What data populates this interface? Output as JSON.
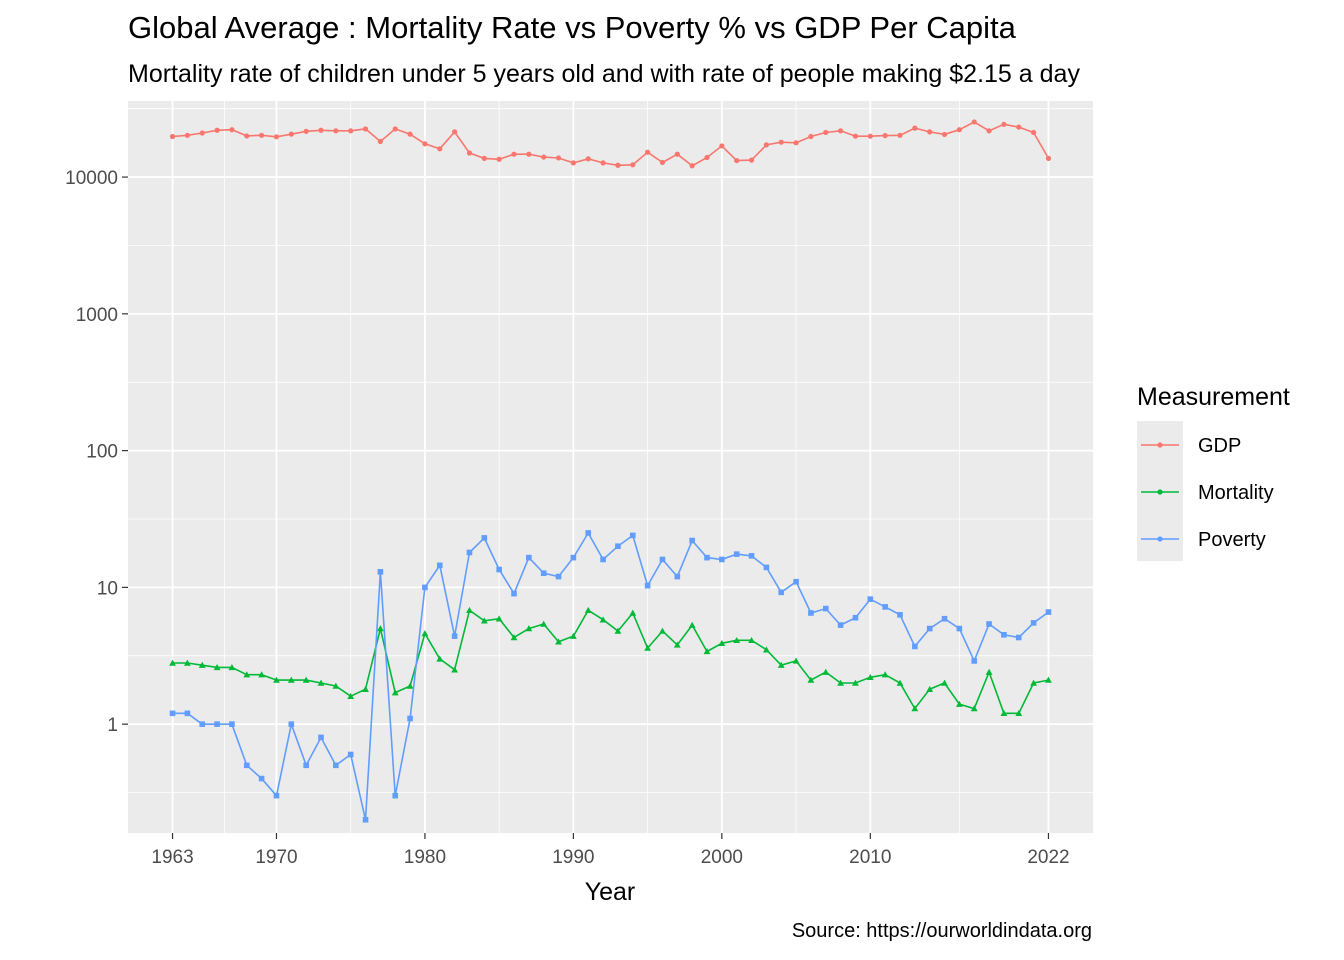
{
  "chart_data": {
    "type": "line",
    "title": "Global Average : Mortality Rate vs Poverty % vs GDP Per Capita",
    "subtitle": "Mortality rate of children under 5 years old and with rate of people making $2.15 a day",
    "caption": "Source: https://ourworldindata.org",
    "xlabel": "Year",
    "ylabel": "",
    "y_scale": "log10",
    "ylim": [
      0.16,
      36000
    ],
    "xlim": [
      1960,
      2025
    ],
    "x_ticks": [
      1963,
      1970,
      1980,
      1990,
      2000,
      2010,
      2022
    ],
    "y_ticks": [
      1,
      10,
      100,
      1000,
      10000
    ],
    "y_tick_labels": [
      "1",
      "10",
      "100",
      "1000",
      "10000"
    ],
    "grid": true,
    "legend": {
      "title": "Measurement",
      "position": "right"
    },
    "x": [
      1963,
      1964,
      1965,
      1966,
      1967,
      1968,
      1969,
      1970,
      1971,
      1972,
      1973,
      1974,
      1975,
      1976,
      1977,
      1978,
      1979,
      1980,
      1981,
      1982,
      1983,
      1984,
      1985,
      1986,
      1987,
      1988,
      1989,
      1990,
      1991,
      1992,
      1993,
      1994,
      1995,
      1996,
      1997,
      1998,
      1999,
      2000,
      2001,
      2002,
      2003,
      2004,
      2005,
      2006,
      2007,
      2008,
      2009,
      2010,
      2011,
      2012,
      2013,
      2014,
      2015,
      2016,
      2017,
      2018,
      2019,
      2020,
      2021,
      2022
    ],
    "series": [
      {
        "name": "GDP",
        "color": "#f8766d",
        "marker": "circle",
        "values": [
          19800,
          20200,
          21000,
          22000,
          22200,
          20000,
          20200,
          19700,
          20600,
          21600,
          22000,
          21800,
          21800,
          22500,
          18200,
          22500,
          20600,
          17500,
          16100,
          21400,
          15000,
          13700,
          13500,
          14700,
          14700,
          14000,
          13800,
          12700,
          13600,
          12700,
          12200,
          12300,
          15200,
          12800,
          14700,
          12100,
          13900,
          16900,
          13200,
          13300,
          17200,
          18000,
          17800,
          19800,
          21200,
          21800,
          19900,
          19900,
          20100,
          20200,
          22800,
          21400,
          20500,
          22200,
          25300,
          21800,
          24300,
          23200,
          21200,
          13700
        ]
      },
      {
        "name": "Mortality",
        "color": "#00ba38",
        "marker": "triangle",
        "values": [
          2.8,
          2.8,
          2.7,
          2.6,
          2.6,
          2.3,
          2.3,
          2.1,
          2.1,
          2.1,
          2.0,
          1.9,
          1.6,
          1.8,
          5.0,
          1.7,
          1.9,
          4.6,
          3.0,
          2.5,
          6.8,
          5.7,
          5.9,
          4.3,
          5.0,
          5.4,
          4.0,
          4.4,
          6.8,
          5.8,
          4.8,
          6.5,
          3.6,
          4.8,
          3.8,
          5.3,
          3.4,
          3.9,
          4.1,
          4.1,
          3.5,
          2.7,
          2.9,
          2.1,
          2.4,
          2.0,
          2.0,
          2.2,
          2.3,
          2.0,
          1.3,
          1.8,
          2.0,
          1.4,
          1.3,
          2.4,
          1.2,
          1.2,
          2.0,
          2.1
        ]
      },
      {
        "name": "Poverty",
        "color": "#619cff",
        "marker": "square",
        "values": [
          1.2,
          1.2,
          1.0,
          1.0,
          1.0,
          0.5,
          0.4,
          0.3,
          1.0,
          0.5,
          0.8,
          0.5,
          0.6,
          0.2,
          13.0,
          0.3,
          1.1,
          10.0,
          14.5,
          4.4,
          18.0,
          23.0,
          13.5,
          9.0,
          16.5,
          12.7,
          12.0,
          16.5,
          25.0,
          16.0,
          20.0,
          24.0,
          10.3,
          16.0,
          12.0,
          22.0,
          16.5,
          16.0,
          17.5,
          17.0,
          14.0,
          9.2,
          11.0,
          6.5,
          7.0,
          5.3,
          6.0,
          8.2,
          7.2,
          6.3,
          3.7,
          5.0,
          5.9,
          5.0,
          2.9,
          5.4,
          4.5,
          4.3,
          5.5,
          6.6
        ]
      }
    ]
  }
}
